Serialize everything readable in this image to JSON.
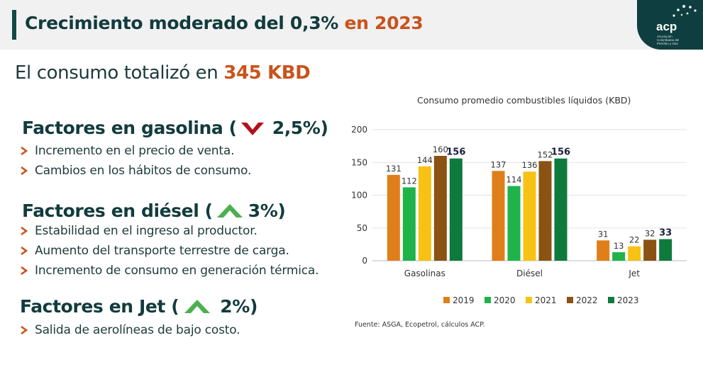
{
  "header": {
    "title_main": "Crecimiento moderado del 0,3%",
    "title_accent": " en 2023"
  },
  "logo": {
    "text": "acp",
    "subtext": "Asociación Colombiana del Petróleo y Gas"
  },
  "headline": {
    "label": "El consumo totalizó en",
    "value": "345 KBD"
  },
  "factors": [
    {
      "title": "Factores en gasolina (",
      "arrow": "down",
      "arrow_color": "#b3121a",
      "pct": "2,5%)",
      "bullets": [
        "Incremento en el precio de venta.",
        "Cambios en los hábitos de consumo."
      ]
    },
    {
      "title": "Factores en diésel (",
      "arrow": "up",
      "arrow_color": "#4caf50",
      "pct": "3%)",
      "bullets": [
        "Estabilidad en el ingreso al productor.",
        "Aumento del transporte terrestre de carga.",
        "Incremento de consumo en generación térmica."
      ]
    },
    {
      "title": "Factores en Jet (",
      "arrow": "up",
      "arrow_color": "#4caf50",
      "pct": "2%)",
      "bullets": [
        "Salida de aerolíneas de bajo costo."
      ]
    }
  ],
  "chart_data": {
    "type": "bar",
    "title": "Consumo promedio combustibles líquidos (KBD)",
    "categories": [
      "Gasolinas",
      "Diésel",
      "Jet"
    ],
    "series": [
      {
        "name": "2019",
        "color": "#e07f1a",
        "values": [
          131,
          137,
          31
        ]
      },
      {
        "name": "2020",
        "color": "#1fb34a",
        "values": [
          112,
          114,
          13
        ]
      },
      {
        "name": "2021",
        "color": "#f7c214",
        "values": [
          144,
          136,
          22
        ]
      },
      {
        "name": "2022",
        "color": "#8a5213",
        "values": [
          160,
          152,
          32
        ]
      },
      {
        "name": "2023",
        "color": "#0e7a3c",
        "values": [
          156,
          156,
          33
        ]
      }
    ],
    "ylim": [
      0,
      200
    ],
    "yticks": [
      0,
      50,
      100,
      150,
      200
    ],
    "grid": true,
    "legend": "bottom",
    "bold_series": "2023",
    "source": "Fuente: ASGA, Ecopetrol, cálculos ACP."
  }
}
